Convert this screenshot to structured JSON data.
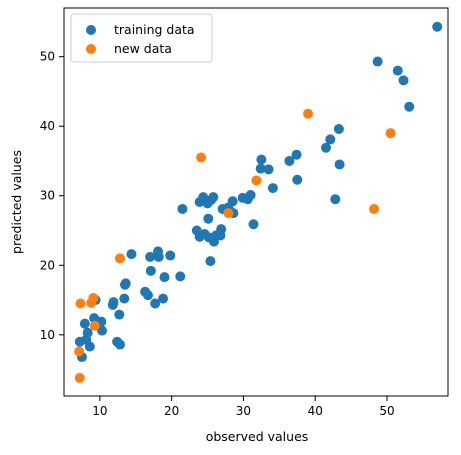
{
  "chart_data": {
    "type": "scatter",
    "title": "",
    "xlabel": "observed values",
    "ylabel": "predicted values",
    "xlim": [
      5,
      58.5
    ],
    "ylim": [
      1.2,
      57
    ],
    "xticks": [
      10,
      20,
      30,
      40,
      50
    ],
    "yticks": [
      10,
      20,
      30,
      40,
      50
    ],
    "grid": false,
    "legend_position": "upper-left",
    "series": [
      {
        "name": "training data",
        "color": "#1f77b4",
        "points": [
          [
            7.2,
            9.0
          ],
          [
            7.5,
            6.8
          ],
          [
            7.9,
            11.6
          ],
          [
            8.1,
            9.3
          ],
          [
            8.3,
            10.3
          ],
          [
            8.6,
            8.3
          ],
          [
            9.2,
            12.4
          ],
          [
            9.4,
            15.0
          ],
          [
            9.8,
            11.6
          ],
          [
            10.2,
            11.9
          ],
          [
            10.3,
            10.6
          ],
          [
            11.8,
            14.3
          ],
          [
            11.9,
            14.7
          ],
          [
            12.4,
            9.0
          ],
          [
            12.8,
            8.6
          ],
          [
            12.7,
            12.9
          ],
          [
            13.4,
            15.2
          ],
          [
            13.5,
            17.2
          ],
          [
            13.6,
            17.4
          ],
          [
            14.4,
            21.6
          ],
          [
            16.3,
            16.2
          ],
          [
            16.7,
            15.7
          ],
          [
            17.0,
            21.2
          ],
          [
            17.1,
            19.2
          ],
          [
            17.7,
            14.5
          ],
          [
            18.1,
            22.0
          ],
          [
            18.2,
            21.2
          ],
          [
            18.8,
            15.2
          ],
          [
            19.0,
            18.3
          ],
          [
            19.8,
            21.4
          ],
          [
            21.2,
            18.4
          ],
          [
            21.5,
            28.1
          ],
          [
            23.5,
            25.0
          ],
          [
            23.9,
            29.1
          ],
          [
            23.9,
            24.1
          ],
          [
            24.4,
            29.8
          ],
          [
            24.6,
            24.5
          ],
          [
            25.0,
            28.9
          ],
          [
            25.1,
            26.7
          ],
          [
            25.2,
            24.0
          ],
          [
            25.4,
            20.6
          ],
          [
            25.5,
            29.4
          ],
          [
            25.8,
            29.8
          ],
          [
            25.9,
            23.4
          ],
          [
            26.2,
            24.3
          ],
          [
            26.8,
            24.3
          ],
          [
            26.9,
            25.2
          ],
          [
            27.1,
            28.1
          ],
          [
            27.9,
            28.3
          ],
          [
            28.1,
            27.6
          ],
          [
            28.5,
            29.2
          ],
          [
            28.6,
            27.5
          ],
          [
            29.9,
            29.7
          ],
          [
            30.6,
            29.5
          ],
          [
            31.0,
            30.1
          ],
          [
            31.4,
            25.9
          ],
          [
            32.4,
            33.9
          ],
          [
            32.5,
            35.2
          ],
          [
            33.5,
            33.8
          ],
          [
            34.1,
            31.1
          ],
          [
            36.4,
            35.0
          ],
          [
            37.4,
            35.9
          ],
          [
            37.5,
            32.3
          ],
          [
            41.5,
            36.9
          ],
          [
            42.1,
            38.1
          ],
          [
            42.8,
            29.5
          ],
          [
            43.3,
            39.6
          ],
          [
            43.4,
            34.5
          ],
          [
            48.7,
            49.3
          ],
          [
            51.5,
            48.0
          ],
          [
            52.3,
            46.6
          ],
          [
            53.1,
            42.8
          ],
          [
            57.0,
            54.3
          ]
        ]
      },
      {
        "name": "new data",
        "color": "#ff7f0e",
        "points": [
          [
            7.1,
            7.6
          ],
          [
            7.2,
            3.8
          ],
          [
            7.3,
            14.5
          ],
          [
            8.8,
            14.6
          ],
          [
            9.1,
            15.3
          ],
          [
            9.3,
            11.3
          ],
          [
            12.8,
            21.0
          ],
          [
            24.1,
            35.5
          ],
          [
            27.9,
            27.5
          ],
          [
            31.8,
            32.2
          ],
          [
            39.0,
            41.8
          ],
          [
            48.2,
            28.1
          ],
          [
            50.5,
            39.0
          ]
        ]
      }
    ]
  }
}
